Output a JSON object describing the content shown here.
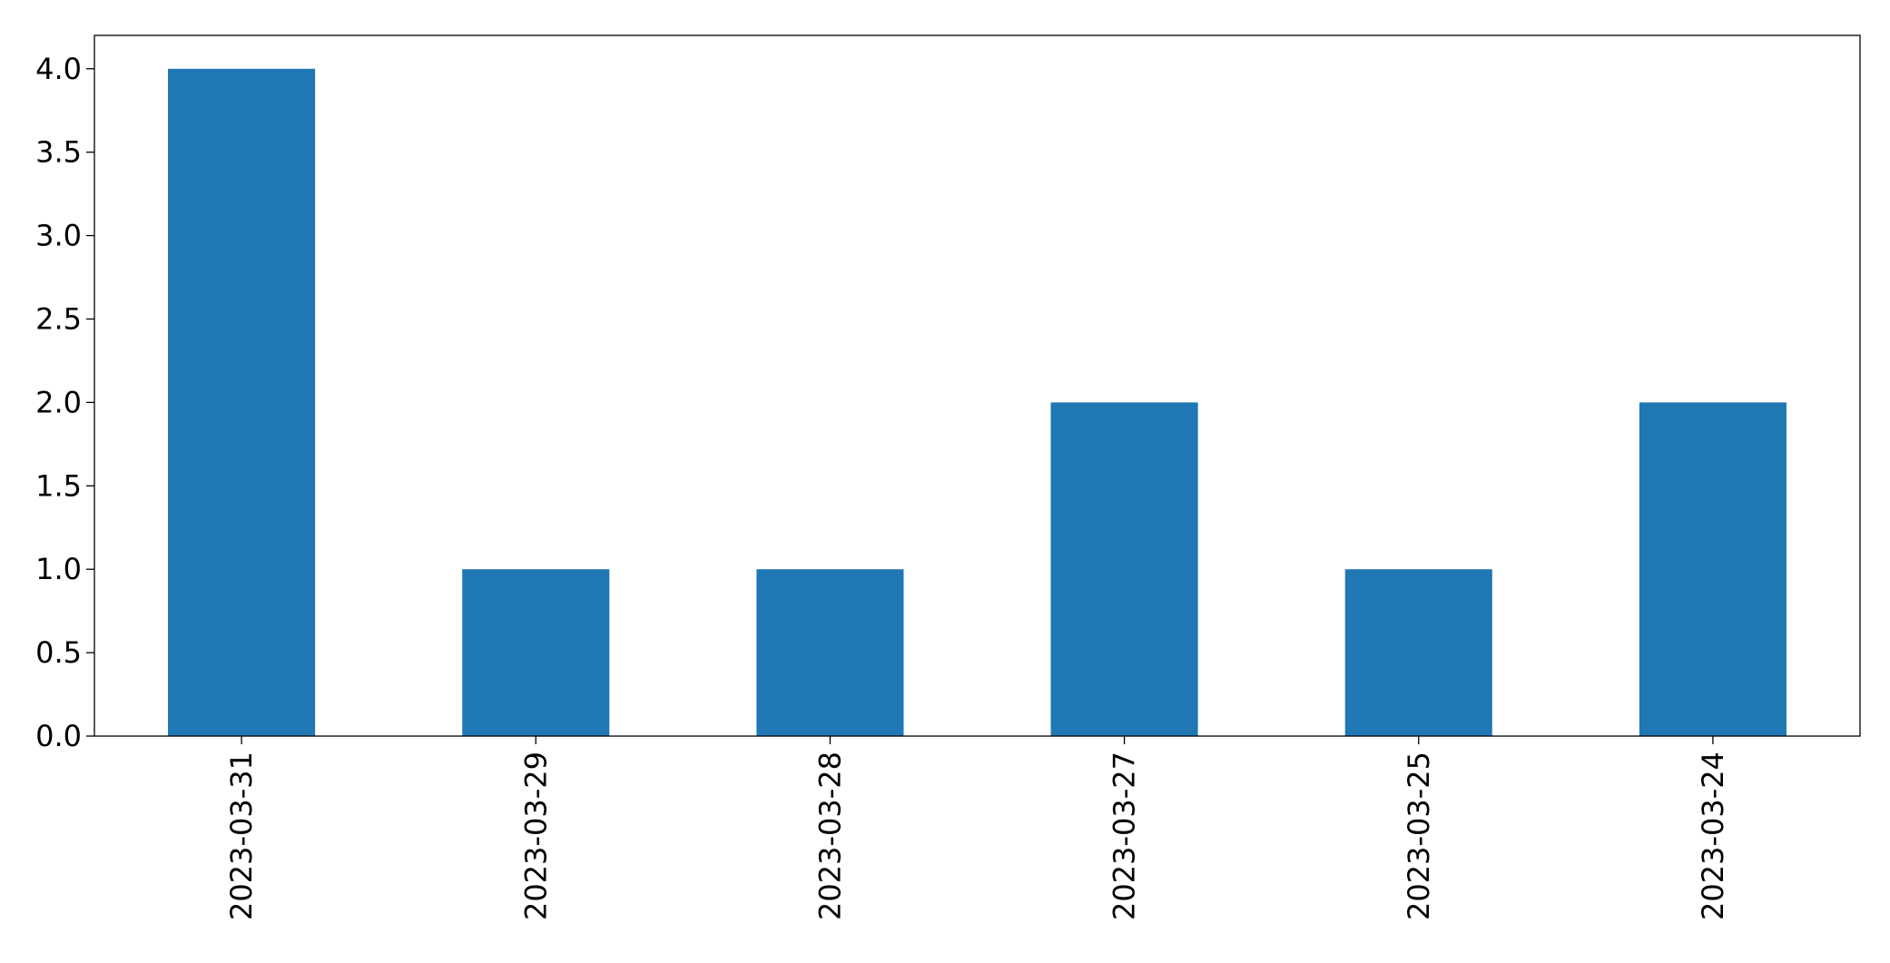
{
  "chart_data": {
    "type": "bar",
    "title": "",
    "xlabel": "",
    "ylabel": "",
    "categories": [
      "2023-03-31",
      "2023-03-29",
      "2023-03-28",
      "2023-03-27",
      "2023-03-25",
      "2023-03-24"
    ],
    "values": [
      4,
      1,
      1,
      2,
      1,
      2
    ],
    "ylim": [
      0,
      4.2
    ],
    "yticks": [
      "0.0",
      "0.5",
      "1.0",
      "1.5",
      "2.0",
      "2.5",
      "3.0",
      "3.5",
      "4.0"
    ],
    "bar_color": "#1f77b4",
    "x_tick_rotation": "vertical",
    "grid": false,
    "legend": "none"
  }
}
